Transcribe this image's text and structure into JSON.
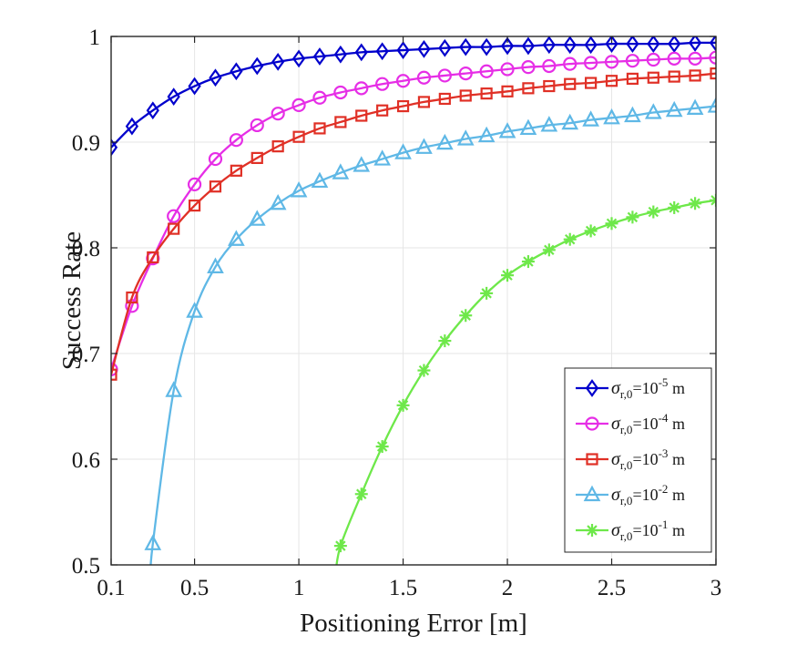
{
  "chart_data": {
    "type": "line",
    "xlabel": "Positioning Error [m]",
    "ylabel": "Success Rate",
    "xlim": [
      0.1,
      3
    ],
    "ylim": [
      0.5,
      1
    ],
    "x_ticks": [
      0.1,
      0.5,
      1,
      1.5,
      2,
      2.5,
      3
    ],
    "x_tick_labels": [
      "0.1",
      "0.5",
      "1",
      "1.5",
      "2",
      "2.5",
      "3"
    ],
    "y_ticks": [
      0.5,
      0.6,
      0.7,
      0.8,
      0.9,
      1
    ],
    "y_tick_labels": [
      "0.5",
      "0.6",
      "0.7",
      "0.8",
      "0.9",
      "1"
    ],
    "grid": true,
    "legend_position": "bottom-right",
    "series": [
      {
        "name": "σr,0=10-5 m",
        "legend": {
          "symbol": "σ",
          "sub": "r,0",
          "mid": "=10",
          "sup": "-5",
          "tail": " m"
        },
        "color": "#0000cc",
        "marker": "diamond",
        "x": [
          0.1,
          0.2,
          0.3,
          0.4,
          0.5,
          0.6,
          0.7,
          0.8,
          0.9,
          1.0,
          1.1,
          1.2,
          1.3,
          1.4,
          1.5,
          1.6,
          1.7,
          1.8,
          1.9,
          2.0,
          2.1,
          2.2,
          2.3,
          2.4,
          2.5,
          2.6,
          2.7,
          2.8,
          2.9,
          3.0
        ],
        "y": [
          0.895,
          0.915,
          0.93,
          0.943,
          0.953,
          0.961,
          0.967,
          0.972,
          0.976,
          0.979,
          0.981,
          0.983,
          0.985,
          0.986,
          0.987,
          0.988,
          0.989,
          0.99,
          0.99,
          0.991,
          0.991,
          0.992,
          0.992,
          0.992,
          0.993,
          0.993,
          0.993,
          0.993,
          0.994,
          0.994
        ]
      },
      {
        "name": "σr,0=10-4 m",
        "legend": {
          "symbol": "σ",
          "sub": "r,0",
          "mid": "=10",
          "sup": "-4",
          "tail": " m"
        },
        "color": "#e62ee6",
        "marker": "circle",
        "x": [
          0.1,
          0.2,
          0.3,
          0.4,
          0.5,
          0.6,
          0.7,
          0.8,
          0.9,
          1.0,
          1.1,
          1.2,
          1.3,
          1.4,
          1.5,
          1.6,
          1.7,
          1.8,
          1.9,
          2.0,
          2.1,
          2.2,
          2.3,
          2.4,
          2.5,
          2.6,
          2.7,
          2.8,
          2.9,
          3.0
        ],
        "y": [
          0.685,
          0.745,
          0.79,
          0.83,
          0.86,
          0.884,
          0.902,
          0.916,
          0.927,
          0.935,
          0.942,
          0.947,
          0.951,
          0.955,
          0.958,
          0.961,
          0.963,
          0.965,
          0.967,
          0.969,
          0.971,
          0.972,
          0.974,
          0.975,
          0.976,
          0.977,
          0.978,
          0.979,
          0.979,
          0.98
        ]
      },
      {
        "name": "σr,0=10-3 m",
        "legend": {
          "symbol": "σ",
          "sub": "r,0",
          "mid": "=10",
          "sup": "-3",
          "tail": " m"
        },
        "color": "#e03026",
        "marker": "square",
        "x": [
          0.1,
          0.2,
          0.3,
          0.4,
          0.5,
          0.6,
          0.7,
          0.8,
          0.9,
          1.0,
          1.1,
          1.2,
          1.3,
          1.4,
          1.5,
          1.6,
          1.7,
          1.8,
          1.9,
          2.0,
          2.1,
          2.2,
          2.3,
          2.4,
          2.5,
          2.6,
          2.7,
          2.8,
          2.9,
          3.0
        ],
        "y": [
          0.68,
          0.753,
          0.791,
          0.818,
          0.84,
          0.858,
          0.873,
          0.885,
          0.896,
          0.905,
          0.913,
          0.919,
          0.925,
          0.93,
          0.934,
          0.938,
          0.941,
          0.944,
          0.946,
          0.948,
          0.951,
          0.953,
          0.955,
          0.956,
          0.958,
          0.96,
          0.961,
          0.962,
          0.963,
          0.965
        ]
      },
      {
        "name": "σr,0=10-2 m",
        "legend": {
          "symbol": "σ",
          "sub": "r,0",
          "mid": "=10",
          "sup": "-2",
          "tail": " m"
        },
        "color": "#5fb8e6",
        "marker": "triangle",
        "x": [
          0.3,
          0.4,
          0.5,
          0.6,
          0.7,
          0.8,
          0.9,
          1.0,
          1.1,
          1.2,
          1.3,
          1.4,
          1.5,
          1.6,
          1.7,
          1.8,
          1.9,
          2.0,
          2.1,
          2.2,
          2.3,
          2.4,
          2.5,
          2.6,
          2.7,
          2.8,
          2.9,
          3.0
        ],
        "y": [
          0.52,
          0.665,
          0.74,
          0.782,
          0.808,
          0.827,
          0.842,
          0.854,
          0.863,
          0.871,
          0.878,
          0.884,
          0.89,
          0.895,
          0.899,
          0.903,
          0.906,
          0.91,
          0.913,
          0.916,
          0.918,
          0.921,
          0.923,
          0.925,
          0.928,
          0.93,
          0.932,
          0.934
        ]
      },
      {
        "name": "σr,0=10-1 m",
        "legend": {
          "symbol": "σ",
          "sub": "r,0",
          "mid": "=10",
          "sup": "-1",
          "tail": " m"
        },
        "color": "#6ee84a",
        "marker": "asterisk",
        "x": [
          1.2,
          1.3,
          1.4,
          1.5,
          1.6,
          1.7,
          1.8,
          1.9,
          2.0,
          2.1,
          2.2,
          2.3,
          2.4,
          2.5,
          2.6,
          2.7,
          2.8,
          2.9,
          3.0
        ],
        "y": [
          0.518,
          0.567,
          0.612,
          0.651,
          0.684,
          0.712,
          0.736,
          0.757,
          0.774,
          0.787,
          0.798,
          0.808,
          0.816,
          0.823,
          0.829,
          0.834,
          0.838,
          0.842,
          0.845
        ]
      }
    ]
  }
}
